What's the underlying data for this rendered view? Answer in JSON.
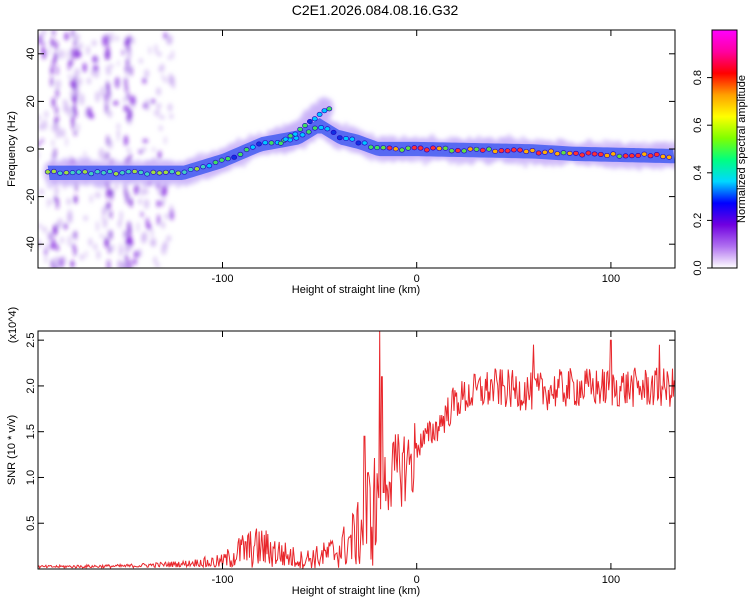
{
  "title": "C2E1.2026.084.08.16.G32",
  "chart_data": [
    {
      "type": "heatmap",
      "xlabel": "Height of straight line (km)",
      "ylabel": "Frequency (Hz)",
      "xlim": [
        -195,
        133
      ],
      "ylim": [
        -50,
        50
      ],
      "xticks": [
        -100,
        0,
        100
      ],
      "xtick_labels": [
        "-100",
        "0",
        "100"
      ],
      "yticks": [
        40,
        20,
        0,
        -20,
        -40
      ],
      "ytick_labels": [
        "40",
        "20",
        "0",
        "-20",
        "-40"
      ],
      "colorbar": {
        "label": "Normalized spectral amplitude",
        "range": [
          0,
          1
        ],
        "ticks": [
          0.0,
          0.2,
          0.4,
          0.6,
          0.8
        ],
        "tick_labels": [
          "0.0",
          "0.2",
          "0.4",
          "0.6",
          "0.8"
        ],
        "colors": [
          "#ffffff",
          "#b070f0",
          "#7000e0",
          "#0000ff",
          "#00d8ff",
          "#00ff80",
          "#80ff00",
          "#ffff00",
          "#ffa000",
          "#ff0000",
          "#ff00a0",
          "#ff00ff"
        ]
      },
      "ridge": [
        {
          "x": -195,
          "y": -10
        },
        {
          "x": -150,
          "y": -10
        },
        {
          "x": -120,
          "y": -10
        },
        {
          "x": -100,
          "y": -5
        },
        {
          "x": -80,
          "y": 2
        },
        {
          "x": -60,
          "y": 5
        },
        {
          "x": -50,
          "y": 10
        },
        {
          "x": -40,
          "y": 5
        },
        {
          "x": -30,
          "y": 3
        },
        {
          "x": -20,
          "y": 0
        },
        {
          "x": 0,
          "y": 0
        },
        {
          "x": 60,
          "y": -1
        },
        {
          "x": 80,
          "y": -2
        },
        {
          "x": 133,
          "y": -3
        }
      ],
      "branch": [
        {
          "x": -70,
          "y": 3
        },
        {
          "x": -60,
          "y": 8
        },
        {
          "x": -50,
          "y": 15
        },
        {
          "x": -45,
          "y": 17
        }
      ]
    },
    {
      "type": "line",
      "xlabel": "Height of straight line (km)",
      "ylabel": "SNR (10 * v/v)",
      "y_multiplier": "(x10^4)",
      "xlim": [
        -195,
        133
      ],
      "ylim": [
        0,
        2.6
      ],
      "xticks": [
        -100,
        0,
        100
      ],
      "xtick_labels": [
        "-100",
        "0",
        "100"
      ],
      "yticks": [
        0.5,
        1.0,
        1.5,
        2.0,
        2.5
      ],
      "ytick_labels": [
        "0.5",
        "1.0",
        "1.5",
        "2.0",
        "2.5"
      ],
      "color": "#e8262b",
      "series": [
        {
          "name": "SNR",
          "envelope": [
            {
              "x": -195,
              "y": 0.03
            },
            {
              "x": -150,
              "y": 0.04
            },
            {
              "x": -120,
              "y": 0.07
            },
            {
              "x": -100,
              "y": 0.12
            },
            {
              "x": -90,
              "y": 0.3
            },
            {
              "x": -80,
              "y": 0.35
            },
            {
              "x": -70,
              "y": 0.25
            },
            {
              "x": -60,
              "y": 0.15
            },
            {
              "x": -50,
              "y": 0.2
            },
            {
              "x": -40,
              "y": 0.3
            },
            {
              "x": -30,
              "y": 0.55
            },
            {
              "x": -25,
              "y": 0.9
            },
            {
              "x": -20,
              "y": 1.0
            },
            {
              "x": -10,
              "y": 1.2
            },
            {
              "x": 0,
              "y": 1.35
            },
            {
              "x": 10,
              "y": 1.55
            },
            {
              "x": 20,
              "y": 1.85
            },
            {
              "x": 30,
              "y": 1.95
            },
            {
              "x": 40,
              "y": 2.0
            },
            {
              "x": 60,
              "y": 1.95
            },
            {
              "x": 80,
              "y": 2.0
            },
            {
              "x": 100,
              "y": 2.0
            },
            {
              "x": 120,
              "y": 2.0
            },
            {
              "x": 133,
              "y": 2.0
            }
          ],
          "spikes": [
            {
              "x": -19,
              "y": 2.6
            },
            {
              "x": -18,
              "y": 2.1
            },
            {
              "x": -27,
              "y": 1.45
            },
            {
              "x": 60,
              "y": 2.45
            },
            {
              "x": 100,
              "y": 2.5
            },
            {
              "x": 125,
              "y": 2.45
            }
          ]
        }
      ]
    }
  ]
}
